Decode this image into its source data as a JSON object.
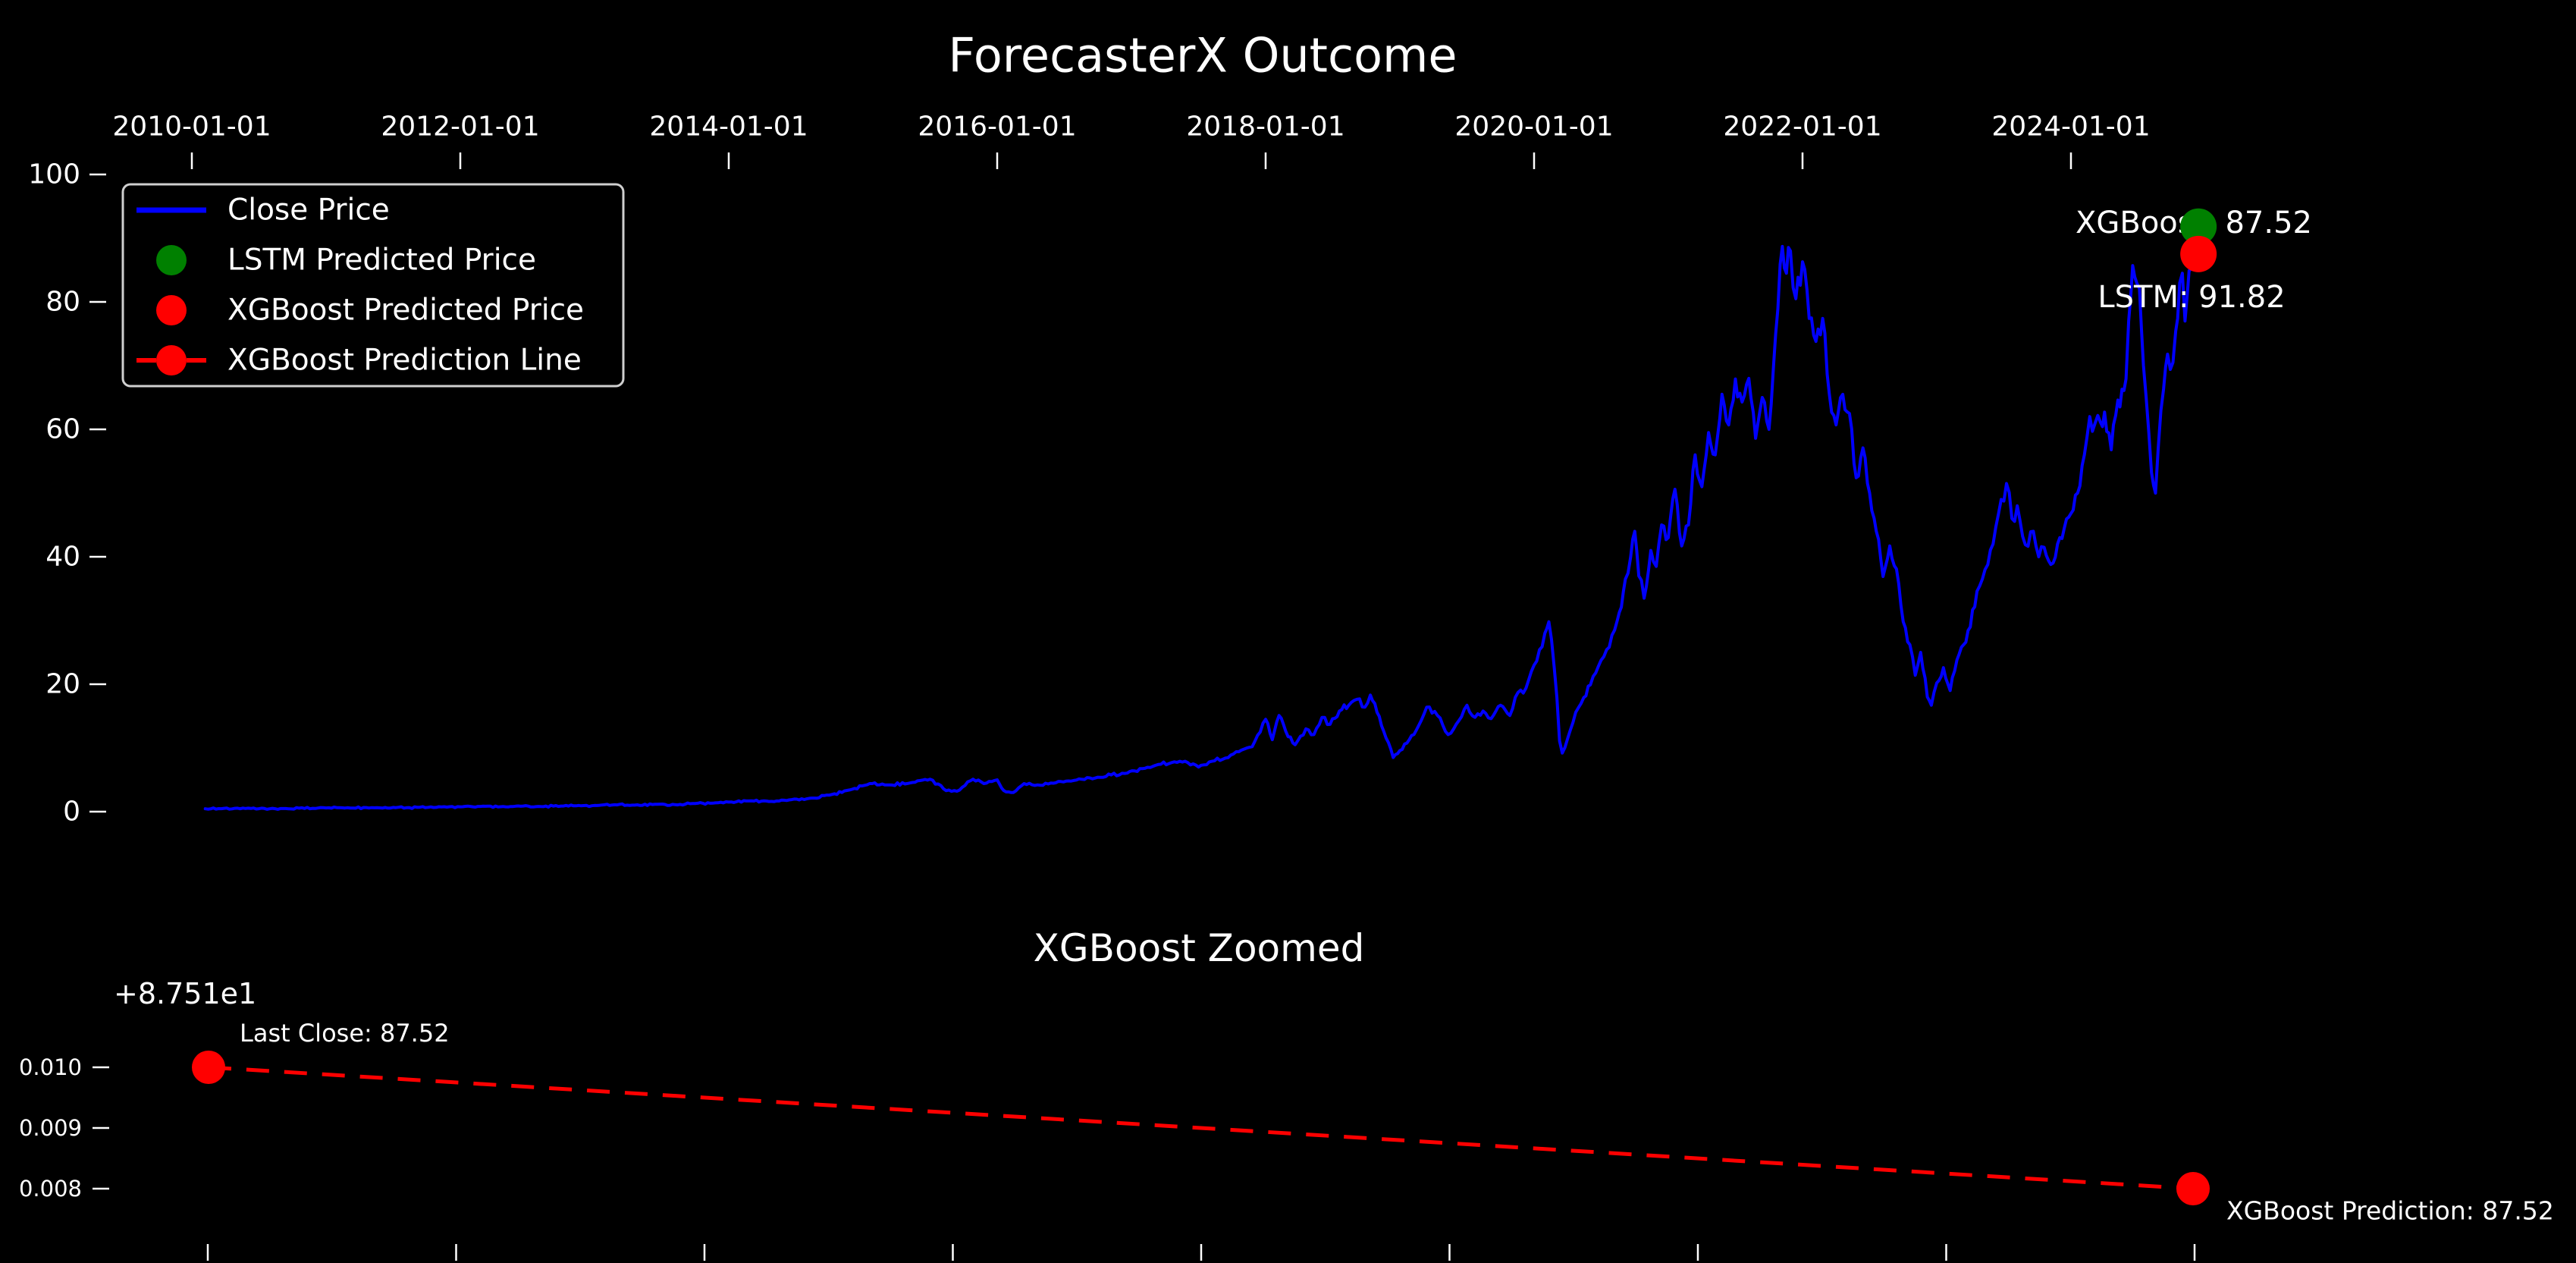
{
  "figure": {
    "background": "#000000",
    "text_color": "#ffffff"
  },
  "main_chart": {
    "title": "ForecasterX Outcome",
    "x_tick_labels": [
      "2010-01-01",
      "2012-01-01",
      "2014-01-01",
      "2016-01-01",
      "2018-01-01",
      "2020-01-01",
      "2022-01-01",
      "2024-01-01"
    ],
    "y_tick_labels": [
      "0",
      "20",
      "40",
      "60",
      "80",
      "100"
    ],
    "legend": {
      "items": [
        {
          "label": "Close Price",
          "marker": "line",
          "color": "#0000ff"
        },
        {
          "label": "LSTM Predicted Price",
          "marker": "dot",
          "color": "#008000"
        },
        {
          "label": "XGBoost Predicted Price",
          "marker": "dot",
          "color": "#ff0000"
        },
        {
          "label": "XGBoost Prediction Line",
          "marker": "dash-dot",
          "color": "#ff0000"
        }
      ]
    },
    "annotations": {
      "xgboost": {
        "text": "XGBoost: 87.52",
        "color": "#ff0000"
      },
      "lstm": {
        "text": "LSTM: 91.82",
        "color": "#008000"
      }
    }
  },
  "zoom_chart": {
    "title": "XGBoost Zoomed",
    "axis_offset_label": "+8.751e1",
    "y_tick_labels": [
      "0.010",
      "0.009",
      "0.008"
    ],
    "annotations": {
      "last_close": {
        "text": "Last Close: 87.52",
        "color": "#ffffff"
      },
      "prediction": {
        "text": "XGBoost Prediction: 87.52",
        "color": "#990000"
      }
    }
  },
  "chart_data": [
    {
      "type": "line",
      "title": "ForecasterX Outcome",
      "x_axis": {
        "position": "top",
        "ticks": [
          2010,
          2012,
          2014,
          2016,
          2018,
          2020,
          2022,
          2024
        ],
        "tick_labels": [
          "2010-01-01",
          "2012-01-01",
          "2014-01-01",
          "2016-01-01",
          "2018-01-01",
          "2020-01-01",
          "2022-01-01",
          "2024-01-01"
        ]
      },
      "y_axis": {
        "ticks": [
          0,
          20,
          40,
          60,
          80,
          100
        ],
        "range": [
          0,
          100
        ]
      },
      "legend_position": "upper left",
      "grid": false,
      "series": [
        {
          "name": "Close Price",
          "type": "line",
          "color": "#0000ff",
          "points": [
            [
              2010.1,
              0.45
            ],
            [
              2010.2,
              0.48
            ],
            [
              2010.3,
              0.44
            ],
            [
              2010.4,
              0.5
            ],
            [
              2010.5,
              0.47
            ],
            [
              2010.6,
              0.52
            ],
            [
              2010.7,
              0.49
            ],
            [
              2010.8,
              0.55
            ],
            [
              2010.9,
              0.52
            ],
            [
              2011.0,
              0.58
            ],
            [
              2011.1,
              0.62
            ],
            [
              2011.2,
              0.57
            ],
            [
              2011.3,
              0.64
            ],
            [
              2011.4,
              0.6
            ],
            [
              2011.5,
              0.67
            ],
            [
              2011.6,
              0.62
            ],
            [
              2011.7,
              0.7
            ],
            [
              2011.8,
              0.66
            ],
            [
              2011.9,
              0.72
            ],
            [
              2012.0,
              0.76
            ],
            [
              2012.15,
              0.82
            ],
            [
              2012.3,
              0.77
            ],
            [
              2012.45,
              0.85
            ],
            [
              2012.6,
              0.8
            ],
            [
              2012.75,
              0.88
            ],
            [
              2012.9,
              0.92
            ],
            [
              2013.0,
              0.98
            ],
            [
              2013.15,
              1.08
            ],
            [
              2013.3,
              1.02
            ],
            [
              2013.45,
              1.15
            ],
            [
              2013.6,
              1.1
            ],
            [
              2013.75,
              1.28
            ],
            [
              2013.9,
              1.38
            ],
            [
              2014.0,
              1.5
            ],
            [
              2014.15,
              1.68
            ],
            [
              2014.3,
              1.6
            ],
            [
              2014.45,
              1.85
            ],
            [
              2014.6,
              2.1
            ],
            [
              2014.75,
              2.6
            ],
            [
              2014.9,
              3.4
            ],
            [
              2015.05,
              4.4
            ],
            [
              2015.2,
              4.2
            ],
            [
              2015.35,
              4.5
            ],
            [
              2015.5,
              5.1
            ],
            [
              2015.62,
              3.3
            ],
            [
              2015.7,
              3.2
            ],
            [
              2015.82,
              5.1
            ],
            [
              2015.9,
              4.4
            ],
            [
              2016.0,
              5.0
            ],
            [
              2016.05,
              3.3
            ],
            [
              2016.12,
              3.0
            ],
            [
              2016.2,
              4.4
            ],
            [
              2016.3,
              4.2
            ],
            [
              2016.4,
              4.5
            ],
            [
              2016.55,
              4.8
            ],
            [
              2016.75,
              5.4
            ],
            [
              2016.95,
              6.0
            ],
            [
              2017.1,
              6.8
            ],
            [
              2017.2,
              7.4
            ],
            [
              2017.3,
              7.7
            ],
            [
              2017.4,
              7.9
            ],
            [
              2017.5,
              7.0
            ],
            [
              2017.6,
              7.9
            ],
            [
              2017.7,
              8.4
            ],
            [
              2017.8,
              9.4
            ],
            [
              2017.9,
              10.2
            ],
            [
              2017.96,
              12.5
            ],
            [
              2018.0,
              14.5
            ],
            [
              2018.05,
              11.3
            ],
            [
              2018.1,
              15.1
            ],
            [
              2018.15,
              12.6
            ],
            [
              2018.22,
              10.5
            ],
            [
              2018.3,
              13.0
            ],
            [
              2018.36,
              12.1
            ],
            [
              2018.42,
              14.8
            ],
            [
              2018.48,
              13.7
            ],
            [
              2018.55,
              15.8
            ],
            [
              2018.62,
              16.7
            ],
            [
              2018.7,
              17.7
            ],
            [
              2018.74,
              16.4
            ],
            [
              2018.78,
              18.3
            ],
            [
              2018.83,
              15.6
            ],
            [
              2018.88,
              12.6
            ],
            [
              2018.95,
              8.5
            ],
            [
              2019.0,
              9.6
            ],
            [
              2019.07,
              11.3
            ],
            [
              2019.14,
              13.5
            ],
            [
              2019.2,
              16.4
            ],
            [
              2019.28,
              15.1
            ],
            [
              2019.36,
              12.1
            ],
            [
              2019.44,
              14.3
            ],
            [
              2019.5,
              16.7
            ],
            [
              2019.56,
              14.8
            ],
            [
              2019.62,
              15.8
            ],
            [
              2019.68,
              14.6
            ],
            [
              2019.75,
              16.7
            ],
            [
              2019.82,
              15.1
            ],
            [
              2019.88,
              18.7
            ],
            [
              2019.94,
              19.4
            ],
            [
              2020.0,
              23.0
            ],
            [
              2020.04,
              25.4
            ],
            [
              2020.08,
              28.0
            ],
            [
              2020.11,
              29.8
            ],
            [
              2020.13,
              27.0
            ],
            [
              2020.15,
              22.6
            ],
            [
              2020.17,
              17.9
            ],
            [
              2020.19,
              11.1
            ],
            [
              2020.21,
              9.2
            ],
            [
              2020.25,
              11.5
            ],
            [
              2020.29,
              14.0
            ],
            [
              2020.33,
              16.3
            ],
            [
              2020.37,
              17.9
            ],
            [
              2020.42,
              19.9
            ],
            [
              2020.46,
              21.8
            ],
            [
              2020.5,
              23.8
            ],
            [
              2020.54,
              25.4
            ],
            [
              2020.58,
              27.7
            ],
            [
              2020.62,
              30.0
            ],
            [
              2020.65,
              32.1
            ],
            [
              2020.68,
              36.5
            ],
            [
              2020.72,
              40.0
            ],
            [
              2020.75,
              44.0
            ],
            [
              2020.78,
              37.0
            ],
            [
              2020.82,
              33.5
            ],
            [
              2020.87,
              41.0
            ],
            [
              2020.91,
              38.5
            ],
            [
              2020.95,
              45.0
            ],
            [
              2021.0,
              43.0
            ],
            [
              2021.05,
              50.6
            ],
            [
              2021.1,
              41.7
            ],
            [
              2021.15,
              45.0
            ],
            [
              2021.2,
              56.0
            ],
            [
              2021.25,
              51.0
            ],
            [
              2021.3,
              59.5
            ],
            [
              2021.35,
              56.0
            ],
            [
              2021.4,
              65.5
            ],
            [
              2021.45,
              60.7
            ],
            [
              2021.5,
              67.9
            ],
            [
              2021.55,
              64.3
            ],
            [
              2021.6,
              68.0
            ],
            [
              2021.65,
              58.6
            ],
            [
              2021.7,
              65.0
            ],
            [
              2021.75,
              60.0
            ],
            [
              2021.8,
              75.0
            ],
            [
              2021.85,
              88.7
            ],
            [
              2021.88,
              84.5
            ],
            [
              2021.91,
              88.0
            ],
            [
              2021.95,
              80.5
            ],
            [
              2022.0,
              86.3
            ],
            [
              2022.05,
              77.4
            ],
            [
              2022.1,
              73.8
            ],
            [
              2022.15,
              77.4
            ],
            [
              2022.2,
              65.5
            ],
            [
              2022.25,
              60.7
            ],
            [
              2022.3,
              65.5
            ],
            [
              2022.35,
              62.5
            ],
            [
              2022.4,
              52.4
            ],
            [
              2022.45,
              57.1
            ],
            [
              2022.5,
              50.0
            ],
            [
              2022.55,
              44.0
            ],
            [
              2022.6,
              36.9
            ],
            [
              2022.65,
              41.7
            ],
            [
              2022.7,
              38.1
            ],
            [
              2022.75,
              29.8
            ],
            [
              2022.8,
              26.2
            ],
            [
              2022.84,
              21.4
            ],
            [
              2022.88,
              25.0
            ],
            [
              2022.93,
              18.0
            ],
            [
              2022.96,
              16.7
            ],
            [
              2023.0,
              20.2
            ],
            [
              2023.05,
              22.6
            ],
            [
              2023.1,
              19.0
            ],
            [
              2023.15,
              23.8
            ],
            [
              2023.2,
              26.2
            ],
            [
              2023.25,
              29.0
            ],
            [
              2023.3,
              34.6
            ],
            [
              2023.36,
              38.0
            ],
            [
              2023.42,
              42.0
            ],
            [
              2023.48,
              49.0
            ],
            [
              2023.52,
              51.5
            ],
            [
              2023.56,
              46.0
            ],
            [
              2023.6,
              48.0
            ],
            [
              2023.66,
              41.9
            ],
            [
              2023.72,
              44.0
            ],
            [
              2023.76,
              40.0
            ],
            [
              2023.8,
              41.5
            ],
            [
              2023.85,
              38.8
            ],
            [
              2023.9,
              42.0
            ],
            [
              2023.95,
              44.5
            ],
            [
              2024.0,
              46.8
            ],
            [
              2024.05,
              50.0
            ],
            [
              2024.1,
              56.0
            ],
            [
              2024.14,
              62.0
            ],
            [
              2024.18,
              61.0
            ],
            [
              2024.22,
              61.1
            ],
            [
              2024.25,
              62.7
            ],
            [
              2024.3,
              56.8
            ],
            [
              2024.35,
              64.6
            ],
            [
              2024.38,
              66.3
            ],
            [
              2024.41,
              67.9
            ],
            [
              2024.43,
              77.0
            ],
            [
              2024.46,
              85.7
            ],
            [
              2024.49,
              83.0
            ],
            [
              2024.51,
              82.1
            ],
            [
              2024.54,
              70.0
            ],
            [
              2024.56,
              65.1
            ],
            [
              2024.6,
              53.2
            ],
            [
              2024.63,
              50.0
            ],
            [
              2024.65,
              57.1
            ],
            [
              2024.69,
              66.3
            ],
            [
              2024.72,
              71.8
            ],
            [
              2024.74,
              69.4
            ],
            [
              2024.78,
              75.4
            ],
            [
              2024.81,
              83.0
            ],
            [
              2024.83,
              84.5
            ],
            [
              2024.85,
              77.0
            ],
            [
              2024.87,
              82.1
            ],
            [
              2024.88,
              84.9
            ],
            [
              2024.92,
              87.52
            ]
          ]
        },
        {
          "name": "LSTM Predicted Price",
          "type": "scatter",
          "color": "#008000",
          "points": [
            [
              2024.95,
              91.82
            ]
          ]
        },
        {
          "name": "XGBoost Predicted Price",
          "type": "scatter",
          "color": "#ff0000",
          "points": [
            [
              2024.95,
              87.52
            ]
          ]
        }
      ]
    },
    {
      "type": "line",
      "title": "XGBoost Zoomed",
      "y_offset": 87.51,
      "y_axis": {
        "ticks": [
          0.01,
          0.009,
          0.008
        ]
      },
      "x_axis": {
        "tick_count": 9,
        "tick_labels_visible": false
      },
      "series": [
        {
          "name": "XGBoost Prediction Line",
          "type": "dashed-line",
          "color": "#ff0000",
          "points": [
            {
              "label": "Last Close",
              "offset_value": 0.01,
              "value": 87.52
            },
            {
              "label": "XGBoost Prediction",
              "offset_value": 0.008,
              "value": 87.52
            }
          ]
        }
      ]
    }
  ]
}
